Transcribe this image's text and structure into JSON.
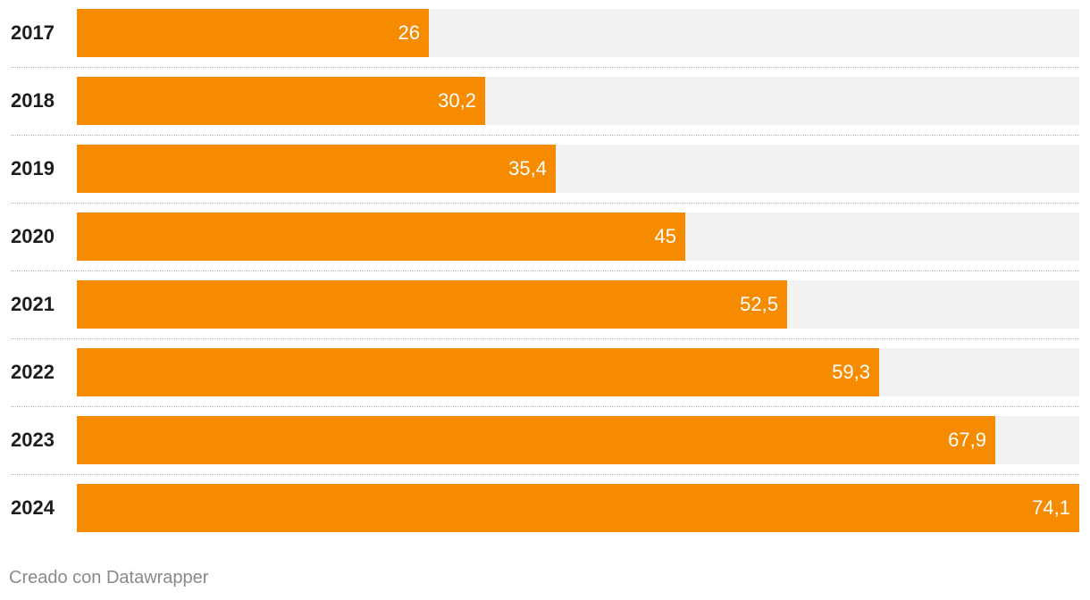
{
  "chart_data": {
    "type": "bar",
    "orientation": "horizontal",
    "categories": [
      "2017",
      "2018",
      "2019",
      "2020",
      "2021",
      "2022",
      "2023",
      "2024"
    ],
    "values": [
      26,
      30.2,
      35.4,
      45,
      52.5,
      59.3,
      67.9,
      74.1
    ],
    "value_labels": [
      "26",
      "30,2",
      "35,4",
      "45",
      "52,5",
      "59,3",
      "67,9",
      "74,1"
    ],
    "xlim": [
      0,
      74.1
    ],
    "bar_color": "#f68b00",
    "track_color": "#f2f2f2",
    "grid": false
  },
  "footer": {
    "credit": "Creado con Datawrapper"
  }
}
